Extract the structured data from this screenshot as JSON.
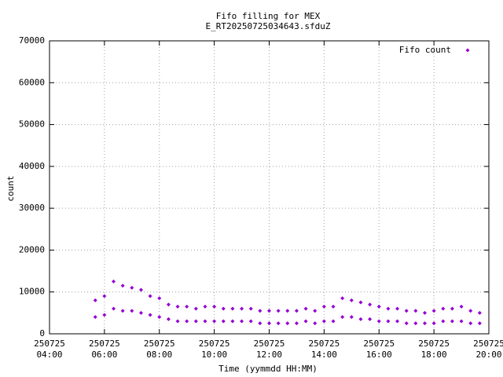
{
  "chart_data": {
    "type": "scatter",
    "title": "Fifo filling for MEX",
    "subtitle": "E_RT20250725034643.sfduZ",
    "x_label": "Time (yymmdd HH:MM)",
    "y_label": "count",
    "grid": true,
    "legend": "top-right",
    "xlim": [
      "250725 04:00",
      "250725 20:00"
    ],
    "xticks": [
      {
        "value": "250725 04:00",
        "label": [
          "250725",
          "04:00"
        ]
      },
      {
        "value": "250725 06:00",
        "label": [
          "250725",
          "06:00"
        ]
      },
      {
        "value": "250725 08:00",
        "label": [
          "250725",
          "08:00"
        ]
      },
      {
        "value": "250725 10:00",
        "label": [
          "250725",
          "10:00"
        ]
      },
      {
        "value": "250725 12:00",
        "label": [
          "250725",
          "12:00"
        ]
      },
      {
        "value": "250725 14:00",
        "label": [
          "250725",
          "14:00"
        ]
      },
      {
        "value": "250725 16:00",
        "label": [
          "250725",
          "16:00"
        ]
      },
      {
        "value": "250725 18:00",
        "label": [
          "250725",
          "18:00"
        ]
      },
      {
        "value": "250725 20:00",
        "label": [
          "250725",
          "20:00"
        ]
      }
    ],
    "ylim": [
      0,
      70000
    ],
    "yticks": [
      0,
      10000,
      20000,
      30000,
      40000,
      50000,
      60000,
      70000
    ],
    "series": [
      {
        "name": "Fifo count",
        "color": "#9400d3",
        "x": [
          "250725 05:40",
          "250725 05:40",
          "250725 06:00",
          "250725 06:00",
          "250725 06:20",
          "250725 06:20",
          "250725 06:40",
          "250725 06:40",
          "250725 07:00",
          "250725 07:00",
          "250725 07:20",
          "250725 07:20",
          "250725 07:40",
          "250725 07:40",
          "250725 08:00",
          "250725 08:00",
          "250725 08:20",
          "250725 08:20",
          "250725 08:40",
          "250725 08:40",
          "250725 09:00",
          "250725 09:00",
          "250725 09:20",
          "250725 09:20",
          "250725 09:40",
          "250725 09:40",
          "250725 10:00",
          "250725 10:00",
          "250725 10:20",
          "250725 10:20",
          "250725 10:40",
          "250725 10:40",
          "250725 11:00",
          "250725 11:00",
          "250725 11:20",
          "250725 11:20",
          "250725 11:40",
          "250725 11:40",
          "250725 12:00",
          "250725 12:00",
          "250725 12:20",
          "250725 12:20",
          "250725 12:40",
          "250725 12:40",
          "250725 13:00",
          "250725 13:00",
          "250725 13:20",
          "250725 13:20",
          "250725 13:40",
          "250725 13:40",
          "250725 14:00",
          "250725 14:00",
          "250725 14:20",
          "250725 14:20",
          "250725 14:40",
          "250725 14:40",
          "250725 15:00",
          "250725 15:00",
          "250725 15:20",
          "250725 15:20",
          "250725 15:40",
          "250725 15:40",
          "250725 16:00",
          "250725 16:00",
          "250725 16:20",
          "250725 16:20",
          "250725 16:40",
          "250725 16:40",
          "250725 17:00",
          "250725 17:00",
          "250725 17:20",
          "250725 17:20",
          "250725 17:40",
          "250725 17:40",
          "250725 18:00",
          "250725 18:00",
          "250725 18:20",
          "250725 18:20",
          "250725 18:40",
          "250725 18:40",
          "250725 19:00",
          "250725 19:00",
          "250725 19:20",
          "250725 19:20",
          "250725 19:40",
          "250725 19:40"
        ],
        "values": [
          8000,
          4000,
          9000,
          4500,
          12500,
          6000,
          11500,
          5500,
          11000,
          5500,
          10500,
          5000,
          9000,
          4500,
          8500,
          4000,
          7000,
          3500,
          6500,
          3000,
          6500,
          3000,
          6000,
          3000,
          6500,
          3000,
          6500,
          3000,
          6000,
          3000,
          6000,
          3000,
          6000,
          3000,
          6000,
          3000,
          5500,
          2500,
          5500,
          2500,
          5500,
          2500,
          5500,
          2500,
          5500,
          2500,
          6000,
          3000,
          5500,
          2500,
          6500,
          3000,
          6500,
          3000,
          8500,
          4000,
          8000,
          4000,
          7500,
          3500,
          7000,
          3500,
          6500,
          3000,
          6000,
          3000,
          6000,
          3000,
          5500,
          2500,
          5500,
          2500,
          5000,
          2500,
          5500,
          2500,
          6000,
          3000,
          6000,
          3000,
          6500,
          3000,
          5500,
          2500,
          5000,
          2500
        ]
      }
    ]
  }
}
